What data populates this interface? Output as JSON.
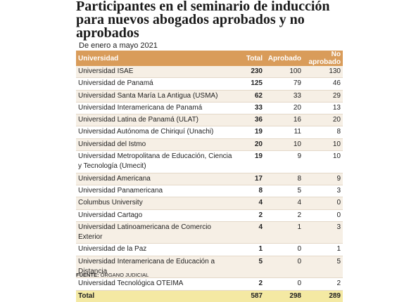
{
  "title": "Participantes en el seminario de inducción para nuevos abogados aprobados y no aprobados",
  "subtitle": "De enero a mayo 2021",
  "table": {
    "headers": [
      "Universidad",
      "Total",
      "Aprobado",
      "No aprobado"
    ],
    "rows": [
      [
        "Universidad ISAE",
        230,
        100,
        130
      ],
      [
        "Universidad de Panamá",
        125,
        79,
        46
      ],
      [
        "Universidad Santa María La Antigua (USMA)",
        62,
        33,
        29
      ],
      [
        "Universidad Interamericana de Panamá",
        33,
        20,
        13
      ],
      [
        "Universidad Latina de Panamá (ULAT)",
        36,
        16,
        20
      ],
      [
        "Universidad Autónoma de Chiriquí (Unachi)",
        19,
        11,
        8
      ],
      [
        "Universidad del Istmo",
        20,
        10,
        10
      ],
      [
        "Universidad Metropolitana de Educación, Ciencia y Tecnología (Umecit)",
        19,
        9,
        10
      ],
      [
        "Universidad Americana",
        17,
        8,
        9
      ],
      [
        "Universidad Panamericana",
        8,
        5,
        3
      ],
      [
        "Columbus University",
        4,
        4,
        0
      ],
      [
        "Universidad Cartago",
        2,
        2,
        0
      ],
      [
        "Universidad Latinoamericana de Comercio Exterior",
        4,
        1,
        3
      ],
      [
        "Universidad de la Paz",
        1,
        0,
        1
      ],
      [
        "Universidad Interamericana de Educación a Distancia",
        5,
        0,
        5
      ],
      [
        "Universidad Tecnológica OTEIMA",
        2,
        0,
        2
      ]
    ],
    "total_row": [
      "Total",
      587,
      298,
      289
    ]
  },
  "source": {
    "label": "FUENTE:",
    "text": "ÓRGANO JUDICIAL"
  }
}
